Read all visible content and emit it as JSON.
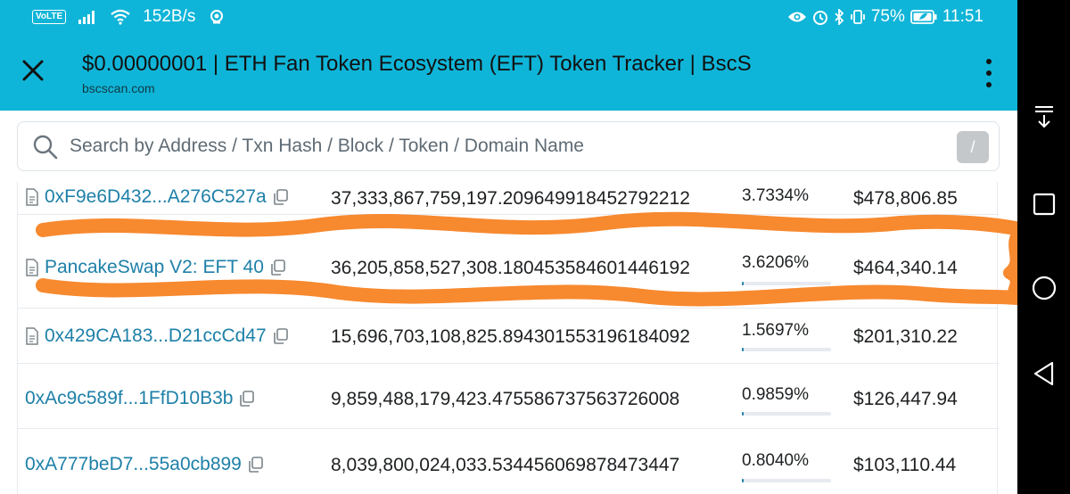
{
  "status_bar": {
    "volte": "VoLTE",
    "net_speed": "152B/s",
    "battery": "75%",
    "time": "11:51"
  },
  "toolbar": {
    "title": "$0.00000001 | ETH Fan Token Ecosystem (EFT) Token Tracker | BscS",
    "url": "bscscan.com"
  },
  "search": {
    "placeholder": "Search by Address / Txn Hash / Block / Token / Domain Name",
    "shortcut": "/"
  },
  "holders": [
    {
      "address": "0xF9e6D432...A276C527a",
      "is_contract": true,
      "quantity": "37,333,867,759,197.209649918452792212",
      "percentage": "3.7334%",
      "percent_value": 3.7334,
      "value": "$478,806.85"
    },
    {
      "address": "PancakeSwap V2: EFT 40",
      "is_contract": true,
      "quantity": "36,205,858,527,308.180453584601446192",
      "percentage": "3.6206%",
      "percent_value": 3.6206,
      "value": "$464,340.14"
    },
    {
      "address": "0x429CA183...D21ccCd47",
      "is_contract": true,
      "quantity": "15,696,703,108,825.894301553196184092",
      "percentage": "1.5697%",
      "percent_value": 1.5697,
      "value": "$201,310.22"
    },
    {
      "address": "0xAc9c589f...1FfD10B3b",
      "is_contract": false,
      "quantity": "9,859,488,179,423.475586737563726008",
      "percentage": "0.9859%",
      "percent_value": 0.9859,
      "value": "$126,447.94"
    },
    {
      "address": "0xA777beD7...55a0cb899",
      "is_contract": false,
      "quantity": "8,039,800,024,033.534456069878473447",
      "percentage": "0.8040%",
      "percent_value": 0.804,
      "value": "$103,110.44"
    }
  ],
  "colors": {
    "header": "#0fb5d8",
    "link": "#1e80a8",
    "annotation": "#f7892f"
  },
  "nav_icons": [
    "download-icon",
    "square-recents-icon",
    "circle-home-icon",
    "triangle-back-icon"
  ]
}
